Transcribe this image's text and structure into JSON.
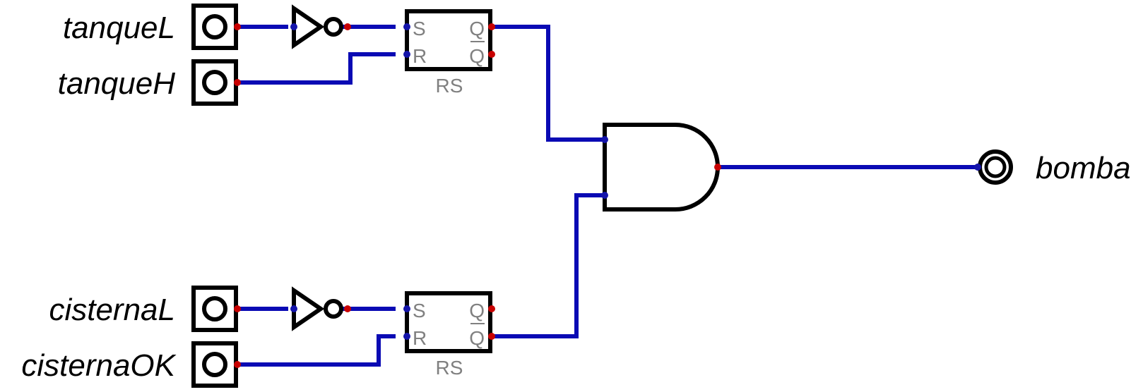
{
  "inputs": {
    "tanqueL": "tanqueL",
    "tanqueH": "tanqueH",
    "cisternaL": "cisternaL",
    "cisternaOK": "cisternaOK"
  },
  "output": {
    "bomba": "bomba"
  },
  "flipflops": {
    "top": {
      "name": "RS",
      "s": "S",
      "r": "R",
      "q": "Q",
      "qbar": "Q"
    },
    "bottom": {
      "name": "RS",
      "s": "S",
      "r": "R",
      "q": "Q",
      "qbar": "Q"
    }
  },
  "colors": {
    "wire": "#0a0ab4",
    "pin_out": "#c80000",
    "pin_in": "#1414aa",
    "component": "#000000",
    "pin_label": "#808080"
  },
  "icons": [
    "input-pin-icon",
    "not-gate-icon",
    "rs-flipflop-icon",
    "and-gate-icon",
    "output-lamp-icon"
  ]
}
